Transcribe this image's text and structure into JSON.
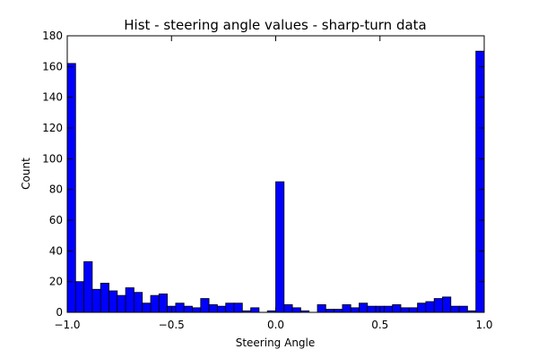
{
  "chart_data": {
    "type": "bar",
    "title": "Hist - steering angle values - sharp-turn data",
    "xlabel": "Steering Angle",
    "ylabel": "Count",
    "xlim": [
      -1.0,
      1.0
    ],
    "ylim": [
      0,
      180
    ],
    "bin_width": 0.04,
    "bin_start": -1.0,
    "bar_color": "#0000ff",
    "edge_color": "#000000",
    "grid": false,
    "xticks": [
      {
        "value": -1.0,
        "label": "−1.0"
      },
      {
        "value": -0.5,
        "label": "−0.5"
      },
      {
        "value": 0.0,
        "label": "0.0"
      },
      {
        "value": 0.5,
        "label": "0.5"
      },
      {
        "value": 1.0,
        "label": "1.0"
      }
    ],
    "yticks": [
      {
        "value": 0,
        "label": "0"
      },
      {
        "value": 20,
        "label": "20"
      },
      {
        "value": 40,
        "label": "40"
      },
      {
        "value": 60,
        "label": "60"
      },
      {
        "value": 80,
        "label": "80"
      },
      {
        "value": 100,
        "label": "100"
      },
      {
        "value": 120,
        "label": "120"
      },
      {
        "value": 140,
        "label": "140"
      },
      {
        "value": 160,
        "label": "160"
      },
      {
        "value": 180,
        "label": "180"
      }
    ],
    "values": [
      162,
      20,
      33,
      15,
      19,
      14,
      11,
      16,
      13,
      6,
      11,
      12,
      4,
      6,
      4,
      3,
      9,
      5,
      4,
      6,
      6,
      1,
      3,
      0,
      1,
      85,
      5,
      3,
      1,
      0,
      5,
      2,
      2,
      5,
      3,
      6,
      4,
      4,
      4,
      5,
      3,
      3,
      6,
      7,
      9,
      10,
      4,
      4,
      1,
      170
    ]
  }
}
